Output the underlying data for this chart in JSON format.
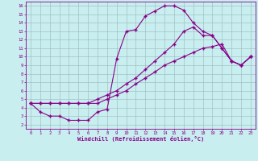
{
  "bg_color": "#c8eef0",
  "grid_color": "#9ab8ba",
  "line_color": "#880088",
  "xlabel": "Windchill (Refroidissement éolien,°C)",
  "xlim_min": -0.5,
  "xlim_max": 23.5,
  "ylim_min": 1.5,
  "ylim_max": 16.5,
  "xticks": [
    0,
    1,
    2,
    3,
    4,
    5,
    6,
    7,
    8,
    9,
    10,
    11,
    12,
    13,
    14,
    15,
    16,
    17,
    18,
    19,
    20,
    21,
    22,
    23
  ],
  "yticks": [
    2,
    3,
    4,
    5,
    6,
    7,
    8,
    9,
    10,
    11,
    12,
    13,
    14,
    15,
    16
  ],
  "line_upper_x": [
    0,
    1,
    2,
    3,
    4,
    5,
    6,
    7,
    8,
    9,
    10,
    11,
    12,
    13,
    14,
    15,
    16,
    17,
    18,
    19,
    20,
    21,
    22,
    23
  ],
  "line_upper_y": [
    4.5,
    3.5,
    3.0,
    3.0,
    2.5,
    2.5,
    2.5,
    3.5,
    3.8,
    9.8,
    13.0,
    13.2,
    14.8,
    15.4,
    16.0,
    16.0,
    15.5,
    14.0,
    13.0,
    12.5,
    11.0,
    9.5,
    9.0,
    10.0
  ],
  "line_mid_x": [
    0,
    1,
    2,
    3,
    4,
    5,
    6,
    7,
    8,
    9,
    10,
    11,
    12,
    13,
    14,
    15,
    16,
    17,
    18,
    19,
    20,
    21,
    22,
    23
  ],
  "line_mid_y": [
    4.5,
    4.5,
    4.5,
    4.5,
    4.5,
    4.5,
    4.5,
    5.0,
    5.5,
    6.0,
    6.8,
    7.5,
    8.5,
    9.5,
    10.5,
    11.5,
    13.0,
    13.5,
    12.5,
    12.5,
    11.0,
    9.5,
    9.0,
    10.0
  ],
  "line_lower_x": [
    0,
    1,
    2,
    3,
    4,
    5,
    6,
    7,
    8,
    9,
    10,
    11,
    12,
    13,
    14,
    15,
    16,
    17,
    18,
    19,
    20,
    21,
    22,
    23
  ],
  "line_lower_y": [
    4.5,
    4.5,
    4.5,
    4.5,
    4.5,
    4.5,
    4.5,
    4.5,
    5.0,
    5.5,
    6.0,
    6.8,
    7.5,
    8.2,
    9.0,
    9.5,
    10.0,
    10.5,
    11.0,
    11.2,
    11.5,
    9.5,
    9.0,
    10.0
  ],
  "tick_fontsize": 4.0,
  "xlabel_fontsize": 5.0
}
